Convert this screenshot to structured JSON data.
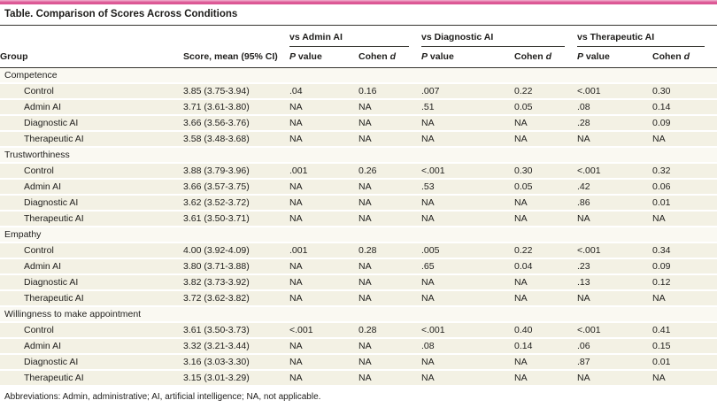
{
  "title": "Table. Comparison of Scores Across Conditions",
  "columns": {
    "group": "Group",
    "score": "Score, mean (95% CI)",
    "comparison_groups": [
      {
        "label": "vs Admin AI"
      },
      {
        "label": "vs Diagnostic AI"
      },
      {
        "label": "vs Therapeutic AI"
      }
    ],
    "p_italic": "P",
    "p_rest": " value",
    "cohen_prefix": "Cohen ",
    "cohen_italic": "d"
  },
  "sections": [
    {
      "label": "Competence",
      "rows": [
        {
          "group": "Control",
          "score": "3.85 (3.75-3.94)",
          "cells": [
            ".04",
            "0.16",
            ".007",
            "0.22",
            "<.001",
            "0.30"
          ]
        },
        {
          "group": "Admin AI",
          "score": "3.71 (3.61-3.80)",
          "cells": [
            "NA",
            "NA",
            ".51",
            "0.05",
            ".08",
            "0.14"
          ]
        },
        {
          "group": "Diagnostic AI",
          "score": "3.66 (3.56-3.76)",
          "cells": [
            "NA",
            "NA",
            "NA",
            "NA",
            ".28",
            "0.09"
          ]
        },
        {
          "group": "Therapeutic AI",
          "score": "3.58 (3.48-3.68)",
          "cells": [
            "NA",
            "NA",
            "NA",
            "NA",
            "NA",
            "NA"
          ]
        }
      ]
    },
    {
      "label": "Trustworthiness",
      "rows": [
        {
          "group": "Control",
          "score": "3.88 (3.79-3.96)",
          "cells": [
            ".001",
            "0.26",
            "<.001",
            "0.30",
            "<.001",
            "0.32"
          ]
        },
        {
          "group": "Admin AI",
          "score": "3.66 (3.57-3.75)",
          "cells": [
            "NA",
            "NA",
            ".53",
            "0.05",
            ".42",
            "0.06"
          ]
        },
        {
          "group": "Diagnostic AI",
          "score": "3.62 (3.52-3.72)",
          "cells": [
            "NA",
            "NA",
            "NA",
            "NA",
            ".86",
            "0.01"
          ]
        },
        {
          "group": "Therapeutic AI",
          "score": "3.61 (3.50-3.71)",
          "cells": [
            "NA",
            "NA",
            "NA",
            "NA",
            "NA",
            "NA"
          ]
        }
      ]
    },
    {
      "label": "Empathy",
      "rows": [
        {
          "group": "Control",
          "score": "4.00 (3.92-4.09)",
          "cells": [
            ".001",
            "0.28",
            ".005",
            "0.22",
            "<.001",
            "0.34"
          ]
        },
        {
          "group": "Admin AI",
          "score": "3.80 (3.71-3.88)",
          "cells": [
            "NA",
            "NA",
            ".65",
            "0.04",
            ".23",
            "0.09"
          ]
        },
        {
          "group": "Diagnostic AI",
          "score": "3.82 (3.73-3.92)",
          "cells": [
            "NA",
            "NA",
            "NA",
            "NA",
            ".13",
            "0.12"
          ]
        },
        {
          "group": "Therapeutic AI",
          "score": "3.72 (3.62-3.82)",
          "cells": [
            "NA",
            "NA",
            "NA",
            "NA",
            "NA",
            "NA"
          ]
        }
      ]
    },
    {
      "label": "Willingness to make appointment",
      "rows": [
        {
          "group": "Control",
          "score": "3.61 (3.50-3.73)",
          "cells": [
            "<.001",
            "0.28",
            "<.001",
            "0.40",
            "<.001",
            "0.41"
          ]
        },
        {
          "group": "Admin AI",
          "score": "3.32 (3.21-3.44)",
          "cells": [
            "NA",
            "NA",
            ".08",
            "0.14",
            ".06",
            "0.15"
          ]
        },
        {
          "group": "Diagnostic AI",
          "score": "3.16 (3.03-3.30)",
          "cells": [
            "NA",
            "NA",
            "NA",
            "NA",
            ".87",
            "0.01"
          ]
        },
        {
          "group": "Therapeutic AI",
          "score": "3.15 (3.01-3.29)",
          "cells": [
            "NA",
            "NA",
            "NA",
            "NA",
            "NA",
            "NA"
          ]
        }
      ]
    }
  ],
  "footnote": "Abbreviations: Admin, administrative; AI, artificial intelligence; NA, not applicable.",
  "colors": {
    "accent_pink": "#dc5794",
    "rule_dark": "#35342f",
    "row_shade": "#f3f1e4",
    "section_shade": "#faf9f2",
    "separator": "#ffffff",
    "text": "#1e1d1b",
    "background": "#ffffff"
  }
}
